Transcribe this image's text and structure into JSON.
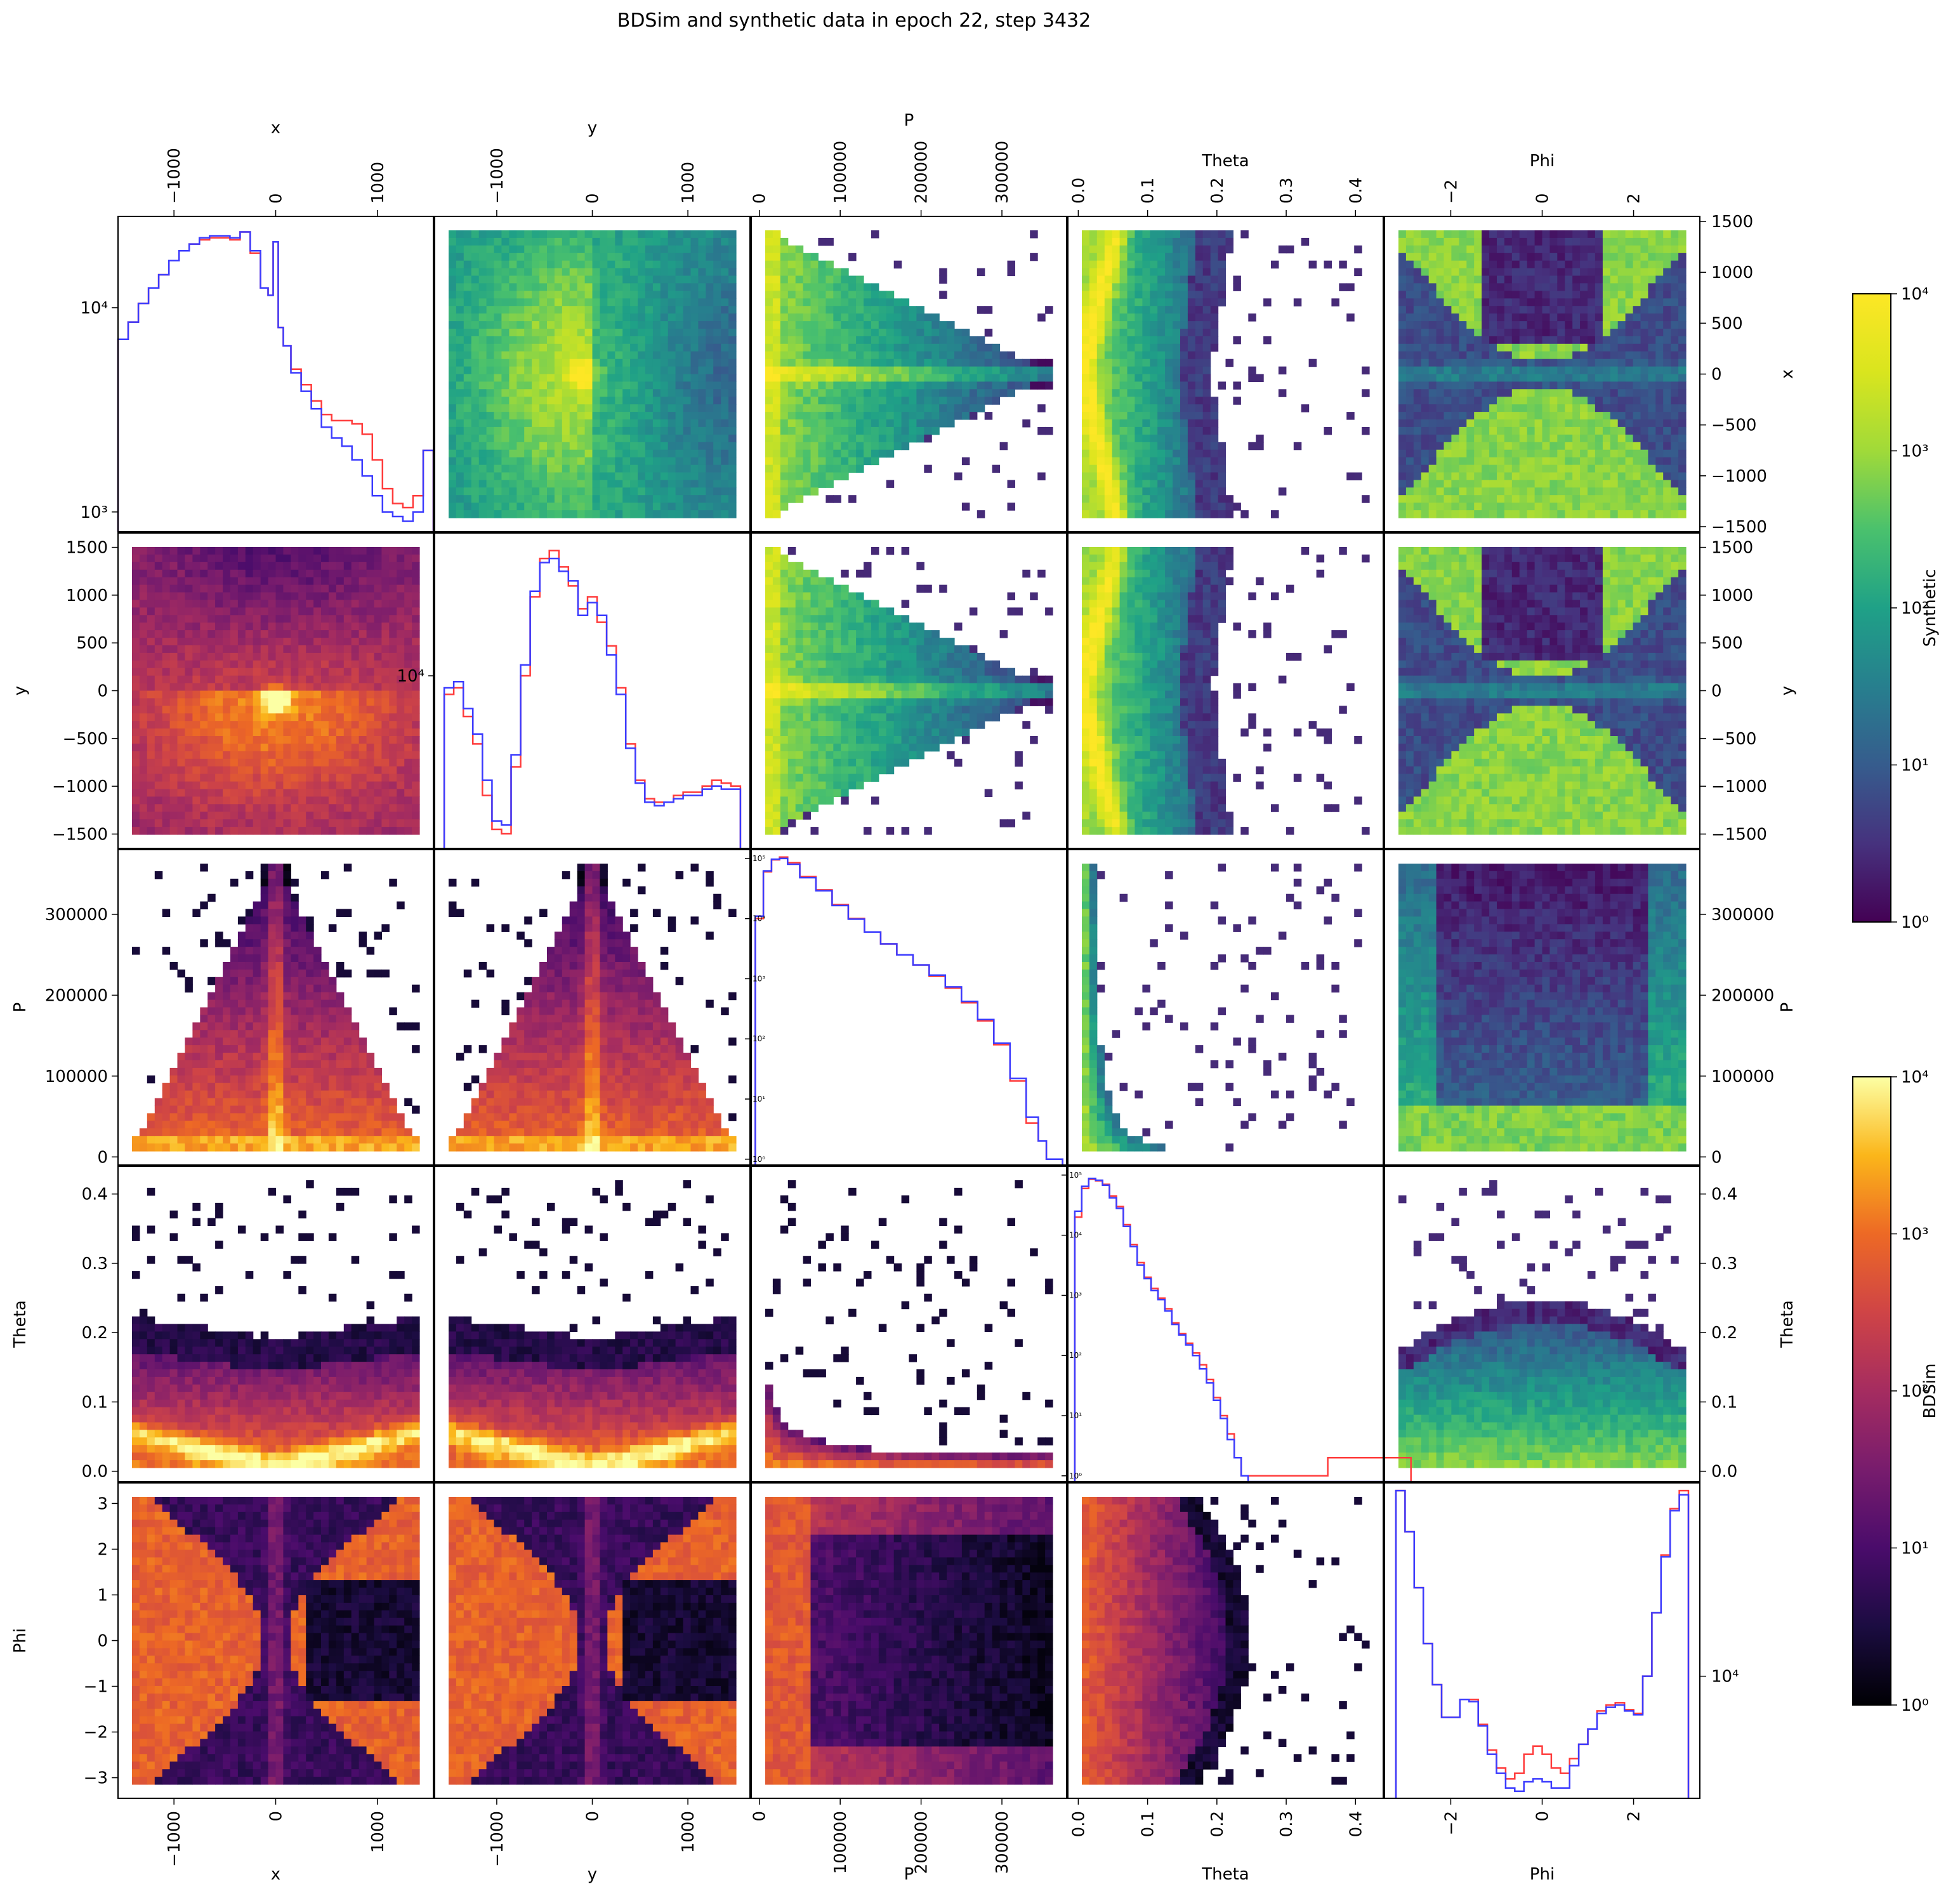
{
  "figure": {
    "title": "BDSim and synthetic data in epoch 22, step 3432"
  },
  "colors": {
    "bdsim_line": "#ff3b3b",
    "synthetic_line": "#3b3bff",
    "frame": "#000000"
  },
  "colorbars": [
    {
      "label": "Synthetic",
      "colormap": "viridis",
      "scale": "log",
      "range": [
        1,
        10000
      ],
      "tick_labels": [
        "10⁰",
        "10¹",
        "10²",
        "10³",
        "10⁴"
      ]
    },
    {
      "label": "BDSim",
      "colormap": "inferno",
      "scale": "log",
      "range": [
        1,
        10000
      ],
      "tick_labels": [
        "10⁰",
        "10¹",
        "10²",
        "10³",
        "10⁴"
      ]
    }
  ],
  "chart_data": {
    "type": "heatmap",
    "layout": "pair-plot 5x5: diagonal = 1D histograms (red = BDSim, blue = Synthetic), upper triangle = Synthetic 2D histograms (viridis, log), lower triangle = BDSim 2D histograms (inferno, log)",
    "variables": [
      {
        "name": "x",
        "range": [
          -1550,
          1550
        ],
        "ticks": [
          -1000,
          0,
          1000
        ],
        "tick_labels": [
          "−1000",
          "0",
          "1000"
        ],
        "side_ticks": [
          -1500,
          -1000,
          -500,
          0,
          500,
          1000,
          1500
        ],
        "side_tick_labels": [
          "−1500",
          "−1000",
          "−500",
          "0",
          "500",
          "1000",
          "1500"
        ]
      },
      {
        "name": "y",
        "range": [
          -1650,
          1650
        ],
        "ticks": [
          -1000,
          0,
          1000
        ],
        "tick_labels": [
          "−1000",
          "0",
          "1000"
        ],
        "side_ticks": [
          -1500,
          -1000,
          -500,
          0,
          500,
          1000,
          1500
        ],
        "side_tick_labels": [
          "−1500",
          "−1000",
          "−500",
          "0",
          "500",
          "1000",
          "1500"
        ]
      },
      {
        "name": "P",
        "range": [
          -10000,
          380000
        ],
        "ticks": [
          0,
          100000,
          200000,
          300000
        ],
        "tick_labels": [
          "0",
          "100000",
          "200000",
          "300000"
        ],
        "side_ticks": [
          0,
          100000,
          200000,
          300000
        ],
        "side_tick_labels": [
          "0",
          "100000",
          "200000",
          "300000"
        ]
      },
      {
        "name": "Theta",
        "range": [
          -0.015,
          0.44
        ],
        "ticks": [
          0.0,
          0.1,
          0.2,
          0.3,
          0.4
        ],
        "tick_labels": [
          "0.0",
          "0.1",
          "0.2",
          "0.3",
          "0.4"
        ],
        "side_ticks": [
          0.0,
          0.1,
          0.2,
          0.3,
          0.4
        ],
        "side_tick_labels": [
          "0.0",
          "0.1",
          "0.2",
          "0.3",
          "0.4"
        ]
      },
      {
        "name": "Phi",
        "range": [
          -3.45,
          3.45
        ],
        "ticks": [
          -2,
          0,
          2
        ],
        "tick_labels": [
          "−2",
          "0",
          "2"
        ],
        "side_ticks": [
          -3,
          -2,
          -1,
          0,
          1,
          2,
          3
        ],
        "side_tick_labels": [
          "−3",
          "−2",
          "−1",
          "0",
          "1",
          "2",
          "3"
        ]
      }
    ],
    "diagonal_histograms": [
      {
        "variable": "x",
        "yscale": "log",
        "ylim": [
          800,
          28000
        ],
        "y_tick_labels": [
          {
            "value": 1000,
            "label": "10³"
          },
          {
            "value": 10000,
            "label": "10⁴"
          }
        ],
        "bin_centers": [
          -1500,
          -1400,
          -1300,
          -1200,
          -1100,
          -1000,
          -900,
          -800,
          -700,
          -600,
          -500,
          -400,
          -300,
          -200,
          -100,
          -50,
          0,
          50,
          100,
          200,
          300,
          400,
          500,
          600,
          700,
          800,
          900,
          1000,
          1100,
          1200,
          1300,
          1400,
          1500
        ],
        "series": [
          {
            "name": "BDSim",
            "values": [
              7000,
              8500,
              10500,
              12500,
              14500,
              17000,
              19000,
              20500,
              21500,
              22000,
              22000,
              21500,
              23500,
              18500,
              12500,
              11500,
              21000,
              8000,
              6500,
              5000,
              4200,
              3500,
              3000,
              2800,
              2800,
              2700,
              2400,
              1800,
              1300,
              1100,
              1050,
              1200,
              2000
            ]
          },
          {
            "name": "Synthetic",
            "values": [
              7000,
              8500,
              10500,
              12500,
              14500,
              17000,
              19000,
              20500,
              22000,
              22500,
              22500,
              22000,
              23500,
              19000,
              12500,
              11500,
              21000,
              8000,
              6500,
              4800,
              3900,
              3200,
              2600,
              2300,
              2100,
              1800,
              1500,
              1200,
              1000,
              950,
              900,
              1000,
              2000
            ]
          }
        ]
      },
      {
        "variable": "y",
        "yscale": "log",
        "ylim": [
          2200,
          35000
        ],
        "y_tick_labels": [
          {
            "value": 10000,
            "label": "10⁴"
          }
        ],
        "bin_centers": [
          -1500,
          -1400,
          -1300,
          -1200,
          -1100,
          -1000,
          -900,
          -800,
          -700,
          -600,
          -500,
          -400,
          -300,
          -200,
          -100,
          0,
          100,
          200,
          300,
          400,
          500,
          600,
          700,
          800,
          900,
          1000,
          1100,
          1200,
          1300,
          1400,
          1500
        ],
        "series": [
          {
            "name": "BDSim",
            "values": [
              8500,
              9000,
              7000,
              5500,
              3500,
              2600,
              2500,
              4500,
              10000,
              20000,
              28000,
              30000,
              26000,
              22000,
              18000,
              20000,
              16000,
              13000,
              9000,
              5500,
              4000,
              3400,
              3300,
              3300,
              3500,
              3600,
              3600,
              3800,
              4000,
              3900,
              3800
            ]
          },
          {
            "name": "Synthetic",
            "values": [
              9000,
              9500,
              7500,
              6000,
              4000,
              2800,
              2700,
              5000,
              11000,
              21000,
              27000,
              28000,
              25000,
              23000,
              17000,
              19000,
              17000,
              12000,
              8500,
              5300,
              3900,
              3300,
              3200,
              3300,
              3400,
              3500,
              3500,
              3700,
              3800,
              3700,
              3700
            ]
          }
        ]
      },
      {
        "variable": "P",
        "yscale": "log",
        "ylim": [
          0.8,
          140000
        ],
        "y_tick_labels": [
          {
            "value": 1,
            "label": "10⁰"
          },
          {
            "value": 10,
            "label": "10¹"
          },
          {
            "value": 100,
            "label": "10²"
          },
          {
            "value": 1000,
            "label": "10³"
          },
          {
            "value": 10000,
            "label": "10⁴"
          },
          {
            "value": 100000,
            "label": "10⁵"
          }
        ],
        "bin_centers": [
          0,
          10000,
          20000,
          30000,
          40000,
          60000,
          80000,
          100000,
          120000,
          140000,
          160000,
          180000,
          200000,
          220000,
          240000,
          260000,
          280000,
          300000,
          320000,
          340000,
          350000,
          360000,
          370000
        ],
        "series": [
          {
            "name": "BDSim",
            "values": [
              10000,
              60000,
              95000,
              105000,
              85000,
              50000,
              30000,
              17000,
              10000,
              6000,
              3800,
              2500,
              1700,
              1100,
              700,
              400,
              200,
              80,
              20,
              4,
              2,
              1,
              1
            ]
          },
          {
            "name": "Synthetic",
            "values": [
              11000,
              62000,
              97000,
              100000,
              80000,
              48000,
              29000,
              16500,
              9800,
              6000,
              3800,
              2500,
              1700,
              1150,
              730,
              420,
              210,
              85,
              22,
              5,
              2,
              1,
              1
            ]
          }
        ]
      },
      {
        "variable": "Theta",
        "yscale": "log",
        "ylim": [
          0.8,
          140000
        ],
        "y_tick_labels": [
          {
            "value": 1,
            "label": "10⁰"
          },
          {
            "value": 10,
            "label": "10¹"
          },
          {
            "value": 100,
            "label": "10²"
          },
          {
            "value": 1000,
            "label": "10³"
          },
          {
            "value": 10000,
            "label": "10⁴"
          },
          {
            "value": 100000,
            "label": "10⁵"
          }
        ],
        "bin_centers": [
          0.0,
          0.01,
          0.02,
          0.03,
          0.04,
          0.05,
          0.06,
          0.07,
          0.08,
          0.09,
          0.1,
          0.11,
          0.12,
          0.13,
          0.14,
          0.15,
          0.16,
          0.17,
          0.18,
          0.19,
          0.2,
          0.21,
          0.22,
          0.23,
          0.24,
          0.25,
          0.26,
          0.27,
          0.28,
          0.29,
          0.3,
          0.42
        ],
        "series": [
          {
            "name": "BDSim",
            "values": [
              20000,
              60000,
              85000,
              80000,
              70000,
              45000,
              30000,
              15000,
              7000,
              3500,
              2000,
              1300,
              900,
              600,
              350,
              230,
              160,
              110,
              70,
              40,
              20,
              10,
              5,
              2,
              1,
              1,
              1,
              1,
              1,
              1,
              1,
              2
            ]
          },
          {
            "name": "Synthetic",
            "values": [
              25000,
              65000,
              88000,
              82000,
              68000,
              42000,
              28000,
              14000,
              6500,
              3200,
              1900,
              1200,
              850,
              550,
              330,
              220,
              150,
              100,
              60,
              35,
              18,
              9,
              4,
              2,
              1,
              0.5,
              0.5,
              0.5,
              0.5,
              0.5,
              0.5,
              0.5
            ]
          }
        ]
      },
      {
        "variable": "Phi",
        "yscale": "log",
        "ylim": [
          2200,
          110000
        ],
        "y_tick_labels": [
          {
            "value": 10000,
            "label": "10⁴"
          }
        ],
        "bin_centers": [
          -3.1,
          -2.9,
          -2.7,
          -2.5,
          -2.3,
          -2.1,
          -1.9,
          -1.7,
          -1.5,
          -1.3,
          -1.1,
          -0.9,
          -0.7,
          -0.5,
          -0.3,
          -0.1,
          0.1,
          0.3,
          0.5,
          0.7,
          0.9,
          1.1,
          1.3,
          1.5,
          1.7,
          1.9,
          2.1,
          2.3,
          2.5,
          2.7,
          2.9,
          3.1
        ],
        "series": [
          {
            "name": "BDSim",
            "values": [
              100000,
              60000,
              30000,
              15000,
              9000,
              6000,
              6000,
              7500,
              7500,
              5500,
              4000,
              3200,
              2800,
              3000,
              3800,
              4200,
              3800,
              3200,
              3000,
              3600,
              4300,
              5200,
              6500,
              7000,
              7200,
              6600,
              6300,
              10000,
              22000,
              45000,
              80000,
              100000
            ]
          },
          {
            "name": "Synthetic",
            "values": [
              100000,
              60000,
              30000,
              15000,
              9000,
              6000,
              6000,
              7500,
              7300,
              5400,
              3800,
              3000,
              2500,
              2400,
              2700,
              2800,
              2700,
              2500,
              2500,
              3300,
              4300,
              5200,
              6300,
              6800,
              7000,
              6500,
              6200,
              10000,
              22000,
              44000,
              78000,
              95000
            ]
          }
        ]
      }
    ]
  }
}
